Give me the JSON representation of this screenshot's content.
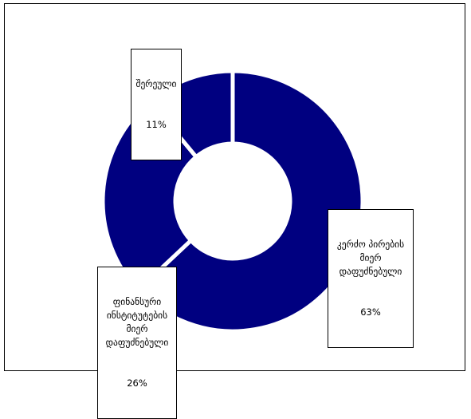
{
  "chart_data": {
    "type": "pie",
    "variant": "donut",
    "color": "#000080",
    "separator_color": "#ffffff",
    "legend": "none",
    "slices": [
      {
        "label": "კერძო პირების მიერ დაფუძნებული",
        "percent_label": "63%",
        "value": 63
      },
      {
        "label": "ფინანსური ინსტიტუტების მიერ დაფუძნებული",
        "percent_label": "26%",
        "value": 26
      },
      {
        "label": "შერეული",
        "percent_label": "11%",
        "value": 11
      }
    ]
  }
}
